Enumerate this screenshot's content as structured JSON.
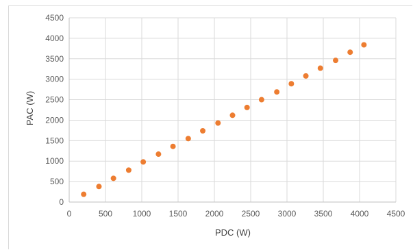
{
  "chart_data": {
    "type": "scatter",
    "xlabel": "PDC (W)",
    "ylabel": "PAC (W)",
    "xlim": [
      0,
      4500
    ],
    "ylim": [
      0,
      4500
    ],
    "xticks": [
      "0",
      "500",
      "1000",
      "1500",
      "2000",
      "2500",
      "3000",
      "3500",
      "4000",
      "4500"
    ],
    "yticks": [
      "0",
      "500",
      "1000",
      "1500",
      "2000",
      "2500",
      "3000",
      "3500",
      "4000",
      "4500"
    ],
    "grid": true,
    "marker_color": "#ED7D31",
    "series": [
      {
        "x": [
          200,
          410,
          610,
          820,
          1020,
          1230,
          1430,
          1640,
          1840,
          2050,
          2250,
          2450,
          2650,
          2860,
          3060,
          3260,
          3460,
          3670,
          3870,
          4060
        ],
        "y": [
          190,
          380,
          580,
          780,
          980,
          1170,
          1360,
          1550,
          1740,
          1930,
          2120,
          2310,
          2500,
          2690,
          2890,
          3080,
          3270,
          3460,
          3660,
          3840
        ]
      }
    ]
  }
}
